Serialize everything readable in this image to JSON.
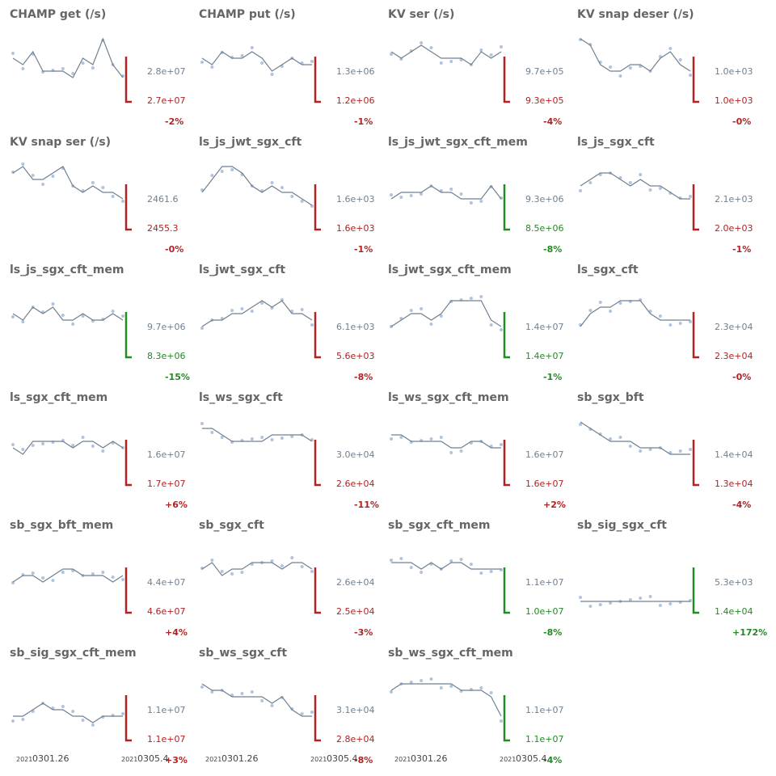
{
  "colors": {
    "title": "#666666",
    "line": "#708090",
    "points": "#b0c4de",
    "increase": "#b22222",
    "decrease": "#228b22",
    "value_label": "#708090",
    "axis_text": "#444444"
  },
  "x_axis": {
    "start_label": {
      "year": "2021",
      "date": "0301.26"
    },
    "end_label": {
      "year": "2021",
      "date": "0305.4"
    }
  },
  "chart_data": [
    {
      "type": "line",
      "title": "CHAMP get (/s)",
      "values": [
        0.6,
        0.5,
        0.7,
        0.4,
        0.4,
        0.4,
        0.3,
        0.6,
        0.5,
        0.9,
        0.5,
        0.3
      ],
      "baseline_label": "2.8e+07",
      "current_label": "2.7e+07",
      "change_label": "-2%",
      "direction": "down"
    },
    {
      "type": "line",
      "title": "CHAMP put (/s)",
      "values": [
        0.6,
        0.5,
        0.7,
        0.6,
        0.6,
        0.7,
        0.6,
        0.4,
        0.5,
        0.6,
        0.5,
        0.5
      ],
      "baseline_label": "1.3e+06",
      "current_label": "1.2e+06",
      "change_label": "-1%",
      "direction": "down"
    },
    {
      "type": "line",
      "title": "KV ser (/s)",
      "values": [
        0.7,
        0.6,
        0.7,
        0.8,
        0.7,
        0.6,
        0.6,
        0.6,
        0.5,
        0.7,
        0.6,
        0.7
      ],
      "baseline_label": "9.7e+05",
      "current_label": "9.3e+05",
      "change_label": "-4%",
      "direction": "down"
    },
    {
      "type": "line",
      "title": "KV snap deser (/s)",
      "values": [
        0.9,
        0.8,
        0.5,
        0.4,
        0.4,
        0.5,
        0.5,
        0.4,
        0.6,
        0.7,
        0.5,
        0.4
      ],
      "baseline_label": "1.0e+03",
      "current_label": "1.0e+03",
      "change_label": "-0%",
      "direction": "down"
    },
    {
      "type": "line",
      "title": "KV snap ser (/s)",
      "values": [
        0.8,
        0.9,
        0.7,
        0.7,
        0.8,
        0.9,
        0.6,
        0.5,
        0.6,
        0.5,
        0.5,
        0.4
      ],
      "baseline_label": "2461.6",
      "current_label": "2455.3",
      "change_label": "-0%",
      "direction": "down"
    },
    {
      "type": "line",
      "title": "ls_js_jwt_sgx_cft",
      "values": [
        0.5,
        0.7,
        0.9,
        0.9,
        0.8,
        0.6,
        0.5,
        0.6,
        0.5,
        0.5,
        0.4,
        0.3
      ],
      "baseline_label": "1.6e+03",
      "current_label": "1.6e+03",
      "change_label": "-1%",
      "direction": "down"
    },
    {
      "type": "line",
      "title": "ls_js_jwt_sgx_cft_mem",
      "values": [
        0.4,
        0.5,
        0.5,
        0.5,
        0.6,
        0.5,
        0.5,
        0.4,
        0.4,
        0.4,
        0.6,
        0.4
      ],
      "baseline_label": "9.3e+06",
      "current_label": "8.5e+06",
      "change_label": "-8%",
      "direction": "up_good"
    },
    {
      "type": "line",
      "title": "ls_js_sgx_cft",
      "values": [
        0.6,
        0.7,
        0.8,
        0.8,
        0.7,
        0.6,
        0.7,
        0.6,
        0.6,
        0.5,
        0.4,
        0.4
      ],
      "baseline_label": "2.1e+03",
      "current_label": "2.0e+03",
      "change_label": "-1%",
      "direction": "down"
    },
    {
      "type": "line",
      "title": "ls_js_sgx_cft_mem",
      "values": [
        0.6,
        0.5,
        0.7,
        0.6,
        0.7,
        0.5,
        0.5,
        0.6,
        0.5,
        0.5,
        0.6,
        0.5
      ],
      "baseline_label": "9.7e+06",
      "current_label": "8.3e+06",
      "change_label": "-15%",
      "direction": "up_good"
    },
    {
      "type": "line",
      "title": "ls_jwt_sgx_cft",
      "values": [
        0.4,
        0.5,
        0.5,
        0.6,
        0.6,
        0.7,
        0.8,
        0.7,
        0.8,
        0.6,
        0.6,
        0.5
      ],
      "baseline_label": "6.1e+03",
      "current_label": "5.6e+03",
      "change_label": "-8%",
      "direction": "down"
    },
    {
      "type": "line",
      "title": "ls_jwt_sgx_cft_mem",
      "values": [
        0.4,
        0.5,
        0.6,
        0.6,
        0.5,
        0.6,
        0.8,
        0.8,
        0.8,
        0.8,
        0.5,
        0.4
      ],
      "baseline_label": "1.4e+07",
      "current_label": "1.4e+07",
      "change_label": "-1%",
      "direction": "up_good"
    },
    {
      "type": "line",
      "title": "ls_sgx_cft",
      "values": [
        0.4,
        0.6,
        0.7,
        0.7,
        0.8,
        0.8,
        0.8,
        0.6,
        0.5,
        0.5,
        0.5,
        0.5
      ],
      "baseline_label": "2.3e+04",
      "current_label": "2.3e+04",
      "change_label": "-0%",
      "direction": "down"
    },
    {
      "type": "line",
      "title": "ls_sgx_cft_mem",
      "values": [
        0.5,
        0.4,
        0.6,
        0.6,
        0.6,
        0.6,
        0.5,
        0.6,
        0.6,
        0.5,
        0.6,
        0.5
      ],
      "baseline_label": "1.6e+07",
      "current_label": "1.7e+07",
      "change_label": "+6%",
      "direction": "up_bad"
    },
    {
      "type": "line",
      "title": "ls_ws_sgx_cft",
      "values": [
        0.8,
        0.8,
        0.7,
        0.6,
        0.6,
        0.6,
        0.6,
        0.7,
        0.7,
        0.7,
        0.7,
        0.6
      ],
      "baseline_label": "3.0e+04",
      "current_label": "2.6e+04",
      "change_label": "-11%",
      "direction": "down"
    },
    {
      "type": "line",
      "title": "ls_ws_sgx_cft_mem",
      "values": [
        0.7,
        0.7,
        0.6,
        0.6,
        0.6,
        0.6,
        0.5,
        0.5,
        0.6,
        0.6,
        0.5,
        0.5
      ],
      "baseline_label": "1.6e+07",
      "current_label": "1.6e+07",
      "change_label": "+2%",
      "direction": "up_bad"
    },
    {
      "type": "line",
      "title": "sb_sgx_bft",
      "values": [
        0.9,
        0.8,
        0.7,
        0.6,
        0.6,
        0.6,
        0.5,
        0.5,
        0.5,
        0.4,
        0.4,
        0.4
      ],
      "baseline_label": "1.4e+04",
      "current_label": "1.3e+04",
      "change_label": "-4%",
      "direction": "down"
    },
    {
      "type": "line",
      "title": "sb_sgx_bft_mem",
      "values": [
        0.4,
        0.5,
        0.5,
        0.4,
        0.5,
        0.6,
        0.6,
        0.5,
        0.5,
        0.5,
        0.4,
        0.5
      ],
      "baseline_label": "4.4e+07",
      "current_label": "4.6e+07",
      "change_label": "+4%",
      "direction": "up_bad"
    },
    {
      "type": "line",
      "title": "sb_sgx_cft",
      "values": [
        0.6,
        0.7,
        0.5,
        0.6,
        0.6,
        0.7,
        0.7,
        0.7,
        0.6,
        0.7,
        0.7,
        0.6
      ],
      "baseline_label": "2.6e+04",
      "current_label": "2.5e+04",
      "change_label": "-3%",
      "direction": "down"
    },
    {
      "type": "line",
      "title": "sb_sgx_cft_mem",
      "values": [
        0.7,
        0.7,
        0.7,
        0.6,
        0.7,
        0.6,
        0.7,
        0.7,
        0.6,
        0.6,
        0.6,
        0.6
      ],
      "baseline_label": "1.1e+07",
      "current_label": "1.0e+07",
      "change_label": "-8%",
      "direction": "up_good"
    },
    {
      "type": "line",
      "title": "sb_sig_sgx_cft",
      "values": [
        0.1,
        0.1,
        0.1,
        0.1,
        0.1,
        0.1,
        0.1,
        0.1,
        0.1,
        0.1,
        0.1,
        0.1
      ],
      "baseline_label": "5.3e+03",
      "current_label": "1.4e+04",
      "change_label": "+172%",
      "direction": "up_good"
    },
    {
      "type": "line",
      "title": "sb_sig_sgx_cft_mem",
      "values": [
        0.3,
        0.3,
        0.4,
        0.5,
        0.4,
        0.4,
        0.3,
        0.3,
        0.2,
        0.3,
        0.3,
        0.3
      ],
      "baseline_label": "1.1e+07",
      "current_label": "1.1e+07",
      "change_label": "+3%",
      "direction": "up_bad"
    },
    {
      "type": "line",
      "title": "sb_ws_sgx_cft",
      "values": [
        0.8,
        0.7,
        0.7,
        0.6,
        0.6,
        0.6,
        0.6,
        0.5,
        0.6,
        0.4,
        0.3,
        0.3
      ],
      "baseline_label": "3.1e+04",
      "current_label": "2.8e+04",
      "change_label": "-8%",
      "direction": "down"
    },
    {
      "type": "line",
      "title": "sb_ws_sgx_cft_mem",
      "values": [
        0.7,
        0.8,
        0.8,
        0.8,
        0.8,
        0.8,
        0.8,
        0.7,
        0.7,
        0.7,
        0.6,
        0.3
      ],
      "baseline_label": "1.1e+07",
      "current_label": "1.1e+07",
      "change_label": "-4%",
      "direction": "up_good"
    }
  ]
}
